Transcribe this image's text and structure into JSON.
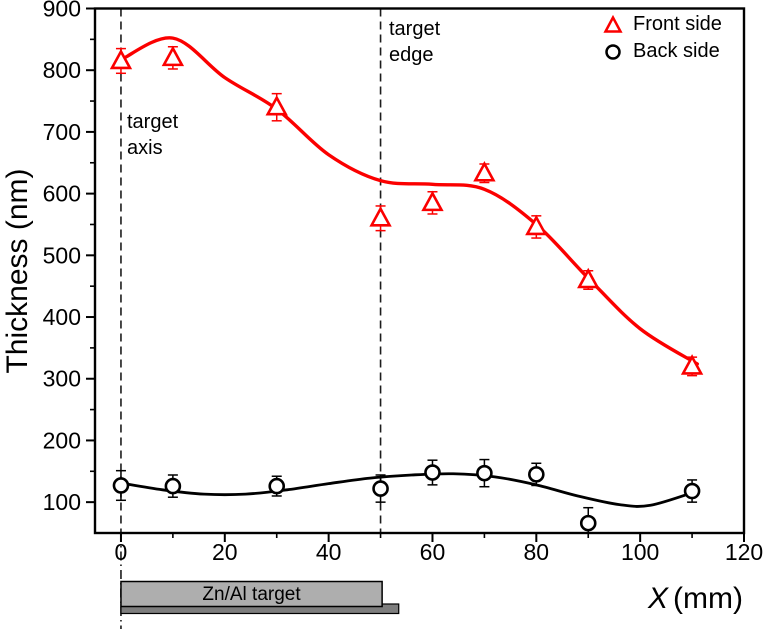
{
  "chart_data": {
    "type": "scatter",
    "title": "",
    "xlabel": "X (mm)",
    "xlabel_var": "X",
    "xlabel_unit": "(mm)",
    "ylabel": "Thickness (nm)",
    "xlim": [
      -5,
      120
    ],
    "ylim": [
      50,
      900
    ],
    "grid": false,
    "legend_position": "top-right-inside",
    "x_major_ticks": [
      0,
      20,
      40,
      60,
      80,
      100,
      120
    ],
    "x_minor_ticks": [
      10,
      30,
      50,
      70,
      90,
      110
    ],
    "y_major_ticks": [
      100,
      200,
      300,
      400,
      500,
      600,
      700,
      800,
      900
    ],
    "y_minor_ticks": [
      150,
      250,
      350,
      450,
      550,
      650,
      750,
      850
    ],
    "series": [
      {
        "name": "Front side",
        "marker": "triangle",
        "color": "#fb0000",
        "points": [
          {
            "x": 0,
            "y": 815,
            "err": 20
          },
          {
            "x": 10,
            "y": 820,
            "err": 18
          },
          {
            "x": 30,
            "y": 740,
            "err": 22
          },
          {
            "x": 50,
            "y": 560,
            "err": 20
          },
          {
            "x": 60,
            "y": 585,
            "err": 18
          },
          {
            "x": 70,
            "y": 633,
            "err": 15
          },
          {
            "x": 80,
            "y": 546,
            "err": 18
          },
          {
            "x": 90,
            "y": 460,
            "err": 15
          },
          {
            "x": 110,
            "y": 320,
            "err": 15
          }
        ],
        "trend": [
          [
            0,
            817
          ],
          [
            10,
            852
          ],
          [
            20,
            788
          ],
          [
            30,
            737
          ],
          [
            40,
            663
          ],
          [
            50,
            621
          ],
          [
            60,
            615
          ],
          [
            70,
            607
          ],
          [
            80,
            550
          ],
          [
            90,
            463
          ],
          [
            100,
            381
          ],
          [
            111,
            324
          ]
        ]
      },
      {
        "name": "Back side",
        "marker": "circle",
        "color": "#000000",
        "points": [
          {
            "x": 0,
            "y": 127,
            "err": 24
          },
          {
            "x": 10,
            "y": 126,
            "err": 18
          },
          {
            "x": 30,
            "y": 126,
            "err": 16
          },
          {
            "x": 50,
            "y": 122,
            "err": 22
          },
          {
            "x": 60,
            "y": 148,
            "err": 20
          },
          {
            "x": 70,
            "y": 147,
            "err": 22
          },
          {
            "x": 80,
            "y": 145,
            "err": 18
          },
          {
            "x": 90,
            "y": 66,
            "err": 25
          },
          {
            "x": 110,
            "y": 118,
            "err": 18
          }
        ],
        "trend": [
          [
            0,
            131
          ],
          [
            8,
            120
          ],
          [
            16,
            113
          ],
          [
            24,
            113
          ],
          [
            32,
            120
          ],
          [
            40,
            130
          ],
          [
            48,
            139
          ],
          [
            56,
            144
          ],
          [
            64,
            146
          ],
          [
            72,
            141
          ],
          [
            80,
            128
          ],
          [
            88,
            110
          ],
          [
            96,
            96
          ],
          [
            102,
            95
          ],
          [
            111,
            118
          ]
        ]
      }
    ],
    "vlines": [
      {
        "x": 0,
        "label": "target\naxis",
        "style": "dashed",
        "extends_below_axis": true
      },
      {
        "x": 50,
        "label": "target\nedge",
        "style": "dashed",
        "extends_below_axis": false
      }
    ],
    "target_bar": {
      "label": "Zn/Al target",
      "x_start": 0,
      "x_end": 50.3,
      "backing_x_end": 53.5,
      "fill": "#aeaeae",
      "backing_fill": "#7e7e7e",
      "border": "#000000"
    }
  },
  "colors": {
    "front_side": "#fb0000",
    "back_side": "#000000",
    "frame": "#000000",
    "dashed_line": "#1c1c1c",
    "background": "#ffffff"
  }
}
